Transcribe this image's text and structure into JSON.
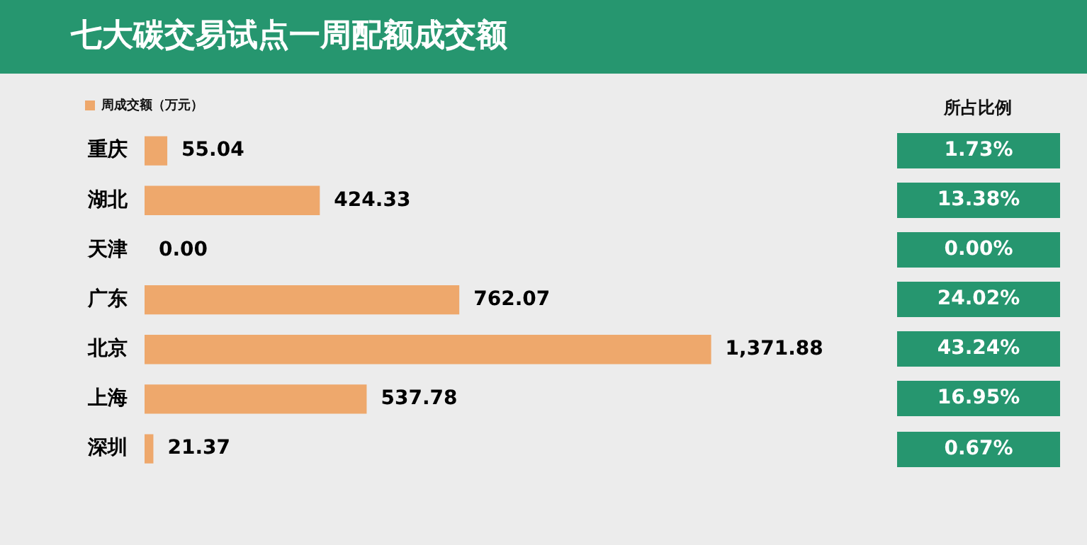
{
  "chart_data": [
    {
      "type": "bar",
      "title": "七大碳交易试点一周配额成交额",
      "orientation": "horizontal",
      "categories": [
        "重庆",
        "湖北",
        "天津",
        "广东",
        "北京",
        "上海",
        "深圳"
      ],
      "series": [
        {
          "name": "周成交额（万元）",
          "color": "#eea86c",
          "values": [
            55.04,
            424.33,
            0,
            762.07,
            1371.88,
            537.78,
            21.37
          ],
          "value_labels": [
            "55.04",
            "424.33",
            "0.00",
            "762.07",
            "1,371.88",
            "537.78",
            "21.37"
          ]
        }
      ],
      "legend": "top left",
      "tick_labels": "y",
      "grid": false
    },
    {
      "type": "other",
      "title": "所占比例",
      "annotations": [
        "1.73%",
        "13.38%",
        "0.00%",
        "24.02%",
        "43.24%",
        "16.95%",
        "0.67%"
      ],
      "color": "#26966f"
    }
  ]
}
